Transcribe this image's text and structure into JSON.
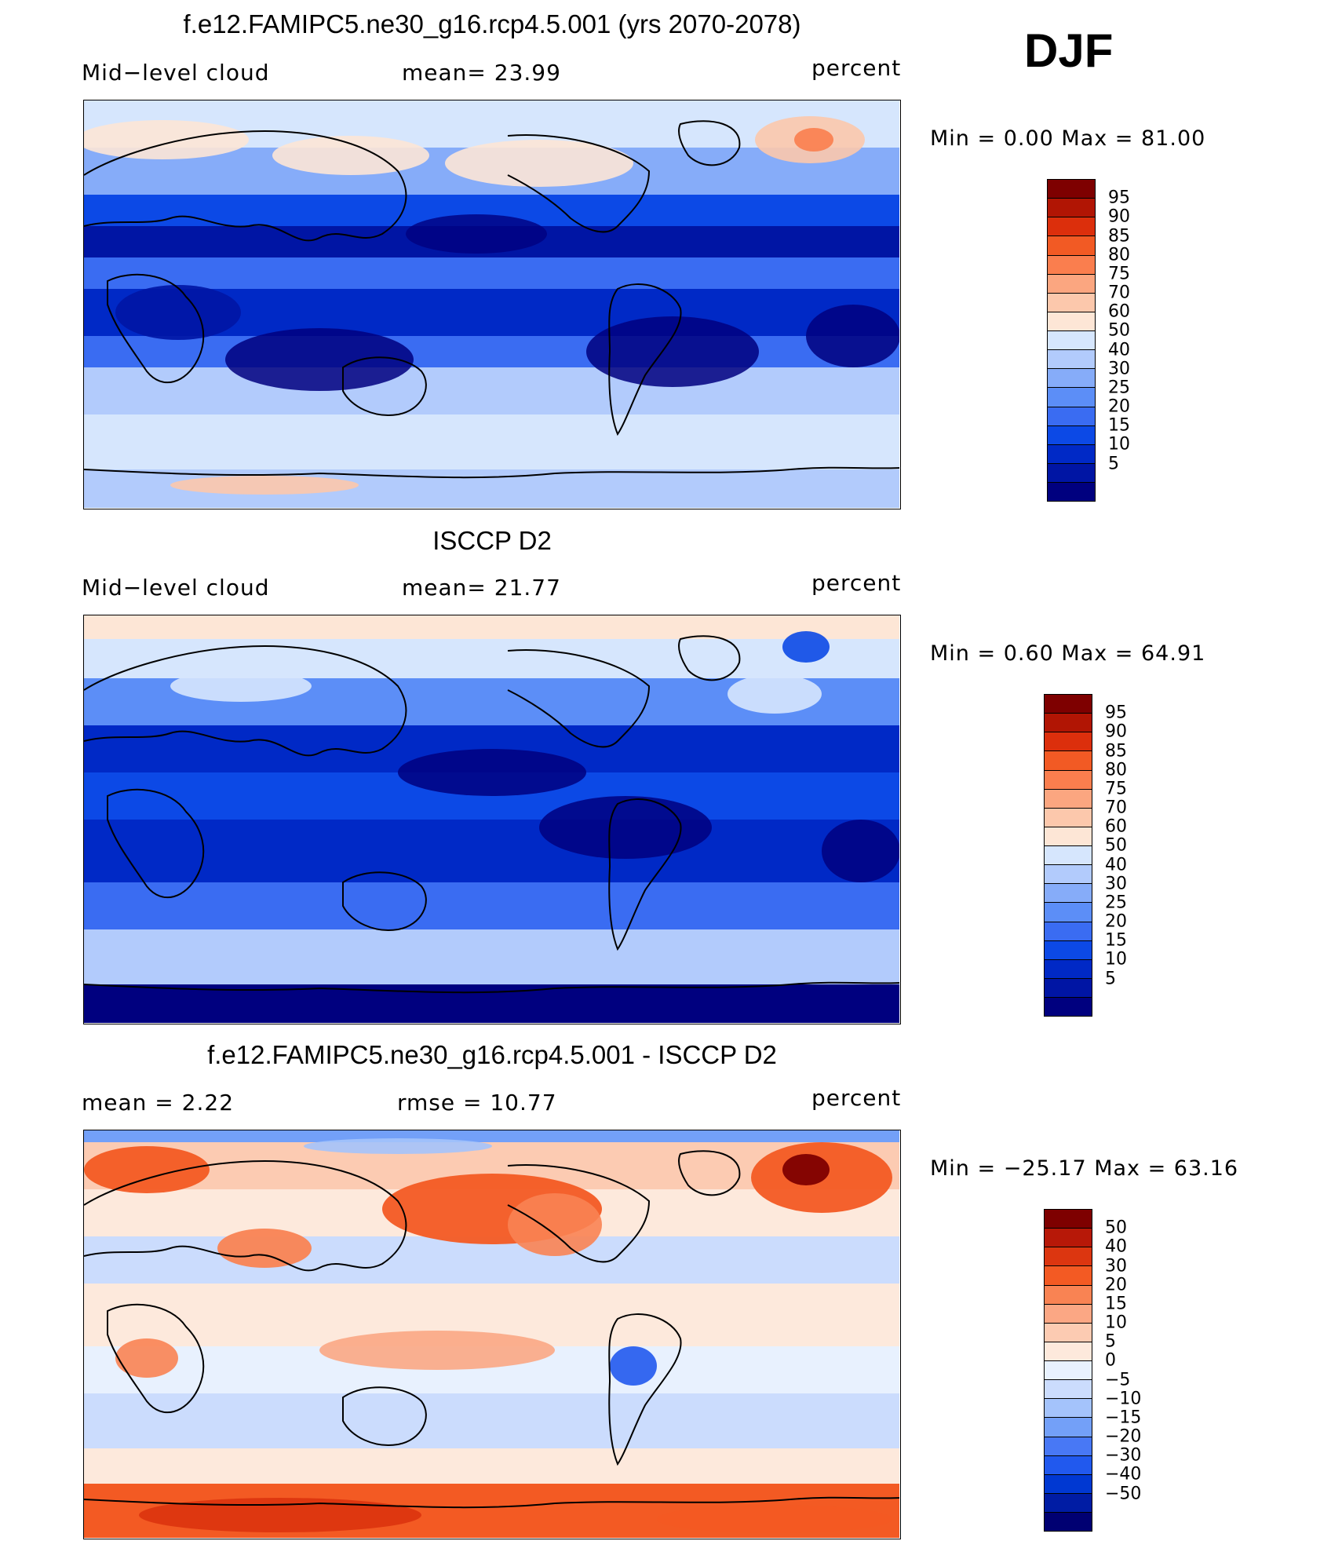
{
  "season": "DJF",
  "palette_blue_red": [
    "#00007f",
    "#0015a4",
    "#0029c6",
    "#0c49e6",
    "#3a6cf2",
    "#5c8ef7",
    "#86acf9",
    "#b2cbfc",
    "#d6e6fd",
    "#fde6d6",
    "#fcc8ac",
    "#fba680",
    "#fa7e4e",
    "#f25a24",
    "#dc2f0c",
    "#b11504",
    "#7e0000"
  ],
  "palette_diff": [
    "#000072",
    "#001ca4",
    "#0038d2",
    "#2159ee",
    "#4878f5",
    "#73a0f8",
    "#a4c3fb",
    "#cbdcfd",
    "#e8f1fe",
    "#fde9dc",
    "#fccbb2",
    "#fba784",
    "#f98353",
    "#f35a23",
    "#dc3610",
    "#b71808",
    "#7e0000"
  ],
  "panels": [
    {
      "id": "model",
      "title": "f.e12.FAMIPC5.ne30_g16.rcp4.5.001 (yrs 2070-2078)",
      "variable": "Mid−level cloud",
      "stat_text": "mean=   23.99",
      "units": "percent",
      "min_text": "Min  =      0.00  Max  =     81.00",
      "levels": [
        "95",
        "90",
        "85",
        "80",
        "75",
        "70",
        "60",
        "50",
        "40",
        "30",
        "25",
        "20",
        "15",
        "10",
        "5"
      ]
    },
    {
      "id": "obs",
      "title": "ISCCP D2",
      "variable": "Mid−level cloud",
      "stat_text": "mean=   21.77",
      "units": "percent",
      "min_text": "Min  =      0.60  Max  =     64.91",
      "levels": [
        "95",
        "90",
        "85",
        "80",
        "75",
        "70",
        "60",
        "50",
        "40",
        "30",
        "25",
        "20",
        "15",
        "10",
        "5"
      ]
    },
    {
      "id": "diff",
      "title": "f.e12.FAMIPC5.ne30_g16.rcp4.5.001 - ISCCP D2",
      "variable": "mean  =      2.22",
      "stat_text": "rmse  =     10.77",
      "units": "percent",
      "min_text": "Min  = −25.17  Max  =     63.16",
      "levels": [
        "50",
        "40",
        "30",
        "20",
        "15",
        "10",
        "5",
        "0",
        "−5",
        "−10",
        "−15",
        "−20",
        "−30",
        "−40",
        "−50"
      ]
    }
  ]
}
